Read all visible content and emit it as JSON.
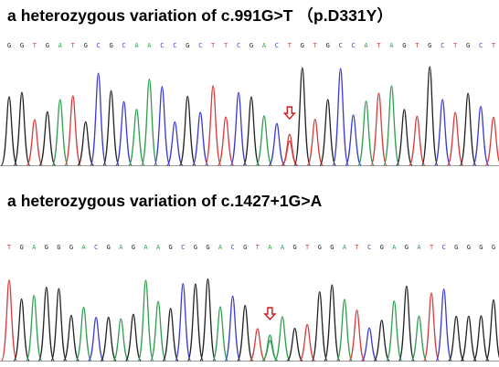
{
  "panels": [
    {
      "title": "a heterozygous variation of c.991G>T （p.D331Y）",
      "sequence": "GGTGATGCGCAACCGCTTCGACTGTGCCATAGTGCTGCT",
      "variant_index": 22
    },
    {
      "title": "a heterozygous variation of c.1427+1G>A",
      "sequence": "TGAGGGACGAGAAGCGGACGTAAGTGGATCGAGATCGGGG",
      "variant_index": 21
    }
  ],
  "colors": {
    "A": "#2e9e4f",
    "C": "#3a3ad0",
    "G": "#222222",
    "T": "#d83a3a",
    "arrow": "#d01818"
  }
}
